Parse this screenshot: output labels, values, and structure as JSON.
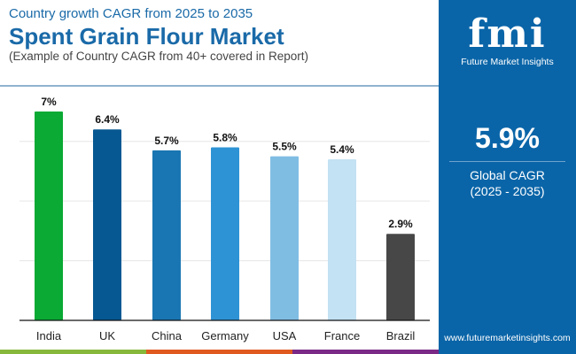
{
  "header": {
    "subtitle": "Country growth CAGR from 2025 to 2035",
    "title": "Spent Grain Flour Market",
    "note": "(Example of Country CAGR from 40+ covered in Report)"
  },
  "panel": {
    "logo_text": "fmi",
    "brand": "Future Market Insights",
    "value": "5.9%",
    "label": "Global CAGR",
    "period": "(2025 - 2035)",
    "url": "www.futuremarketinsights.com",
    "color": "#0a65a8"
  },
  "chart_data": {
    "type": "bar",
    "categories": [
      "India",
      "UK",
      "China",
      "Germany",
      "USA",
      "France",
      "Brazil"
    ],
    "values": [
      7,
      6.4,
      5.7,
      5.8,
      5.5,
      5.4,
      2.9
    ],
    "labels": [
      "7%",
      "6.4%",
      "5.7%",
      "5.8%",
      "5.5%",
      "5.4%",
      "2.9%"
    ],
    "colors": [
      "#0aaa34",
      "#065892",
      "#1a76b2",
      "#2e93d5",
      "#80bde3",
      "#c3e2f3",
      "#474747"
    ],
    "ylim": [
      0,
      7
    ],
    "grid": true,
    "title": "",
    "xlabel": "",
    "ylabel": ""
  },
  "strip_colors": [
    "#86b93b",
    "#e05a1f",
    "#7a2a86"
  ]
}
